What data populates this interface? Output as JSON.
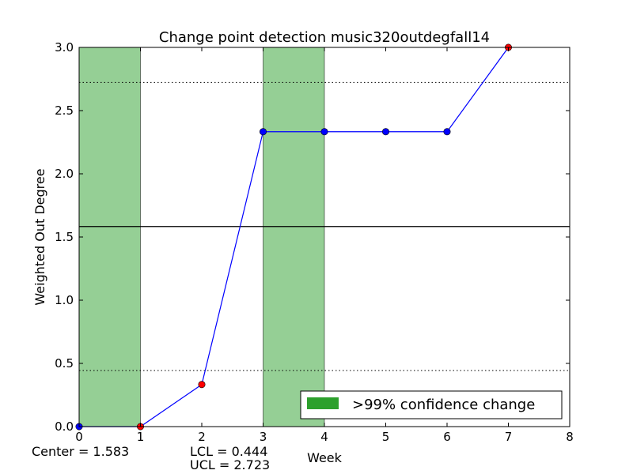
{
  "chart_data": {
    "type": "line",
    "title": "Change point detection music320outdegfall14",
    "xlabel": "Week",
    "ylabel": "Weighted Out Degree",
    "xlim": [
      0,
      8
    ],
    "ylim": [
      0.0,
      3.0
    ],
    "x_ticks": [
      "0",
      "1",
      "2",
      "3",
      "4",
      "5",
      "6",
      "7",
      "8"
    ],
    "y_ticks": [
      "0.0",
      "0.5",
      "1.0",
      "1.5",
      "2.0",
      "2.5",
      "3.0"
    ],
    "grid": false,
    "series": [
      {
        "color": "#0000ff",
        "x": [
          0,
          1,
          2,
          3,
          4,
          5,
          6,
          7
        ],
        "y": [
          0.0,
          0.0,
          0.333,
          2.333,
          2.333,
          2.333,
          2.333,
          3.0
        ],
        "marker_colors": [
          "#0000ff",
          "#ff0000",
          "#ff0000",
          "#0000ff",
          "#0000ff",
          "#0000ff",
          "#0000ff",
          "#ff0000"
        ]
      }
    ],
    "center_line": 1.583,
    "control_limits": {
      "lcl": 0.444,
      "ucl": 2.723
    },
    "confidence_regions": [
      {
        "x_start": 0,
        "x_end": 1
      },
      {
        "x_start": 3,
        "x_end": 4
      }
    ],
    "region_color": "#2ca02c",
    "legend": {
      "label": ">99% confidence change",
      "placement": "lower-right"
    },
    "annotations": {
      "center": "Center = 1.583",
      "lcl": "LCL = 0.444",
      "ucl": "UCL = 2.723"
    }
  }
}
